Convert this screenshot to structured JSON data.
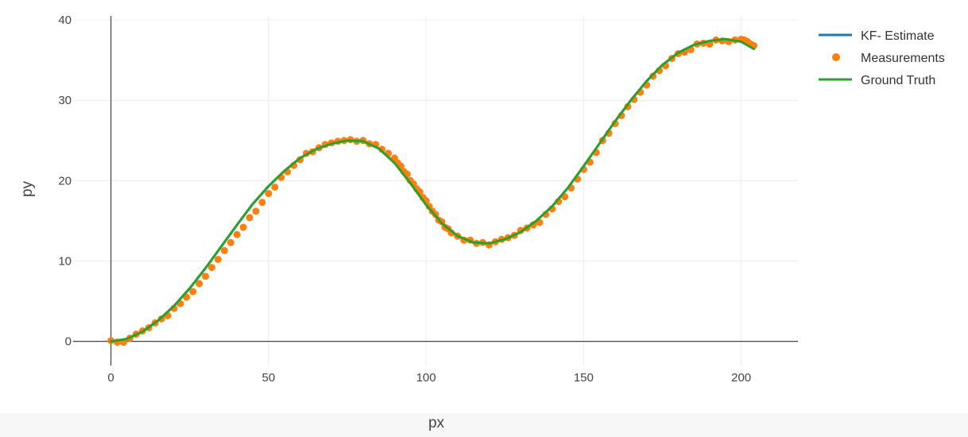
{
  "colors": {
    "kf_estimate": "#1f77b4",
    "measurements": "#ff7f0e",
    "ground_truth": "#2ca02c",
    "grid": "#ececec",
    "zeroline": "#444444",
    "text": "#444444"
  },
  "chart_data": {
    "type": "line",
    "title": "",
    "xlabel": "px",
    "ylabel": "py",
    "xlim": [
      -12,
      218
    ],
    "ylim": [
      -3,
      40.5
    ],
    "grid": true,
    "legend_position": "top-right",
    "x_ticks": [
      0,
      50,
      100,
      150,
      200
    ],
    "y_ticks": [
      0,
      10,
      20,
      30,
      40
    ],
    "series": [
      {
        "name": "KF- Estimate",
        "mode": "lines",
        "x": [
          0,
          5,
          10,
          15,
          20,
          25,
          30,
          35,
          40,
          45,
          50,
          55,
          60,
          65,
          70,
          75,
          80,
          85,
          90,
          95,
          100,
          105,
          110,
          115,
          120,
          125,
          130,
          135,
          140,
          145,
          150,
          155,
          160,
          165,
          170,
          175,
          180,
          185,
          190,
          195,
          200,
          204
        ],
        "y": [
          0,
          0.3,
          1.2,
          2.6,
          4.4,
          6.6,
          9.1,
          11.8,
          14.5,
          17.1,
          19.3,
          21.2,
          22.8,
          23.9,
          24.6,
          25.0,
          24.9,
          24.0,
          22.2,
          19.7,
          17.0,
          14.7,
          13.1,
          12.3,
          12.2,
          12.7,
          13.6,
          15.0,
          16.8,
          19.1,
          21.8,
          24.6,
          27.4,
          30.0,
          32.4,
          34.4,
          35.9,
          36.9,
          37.4,
          37.6,
          37.3,
          36.4
        ]
      },
      {
        "name": "Measurements",
        "mode": "markers",
        "x": [
          0,
          2,
          4,
          6,
          8,
          10,
          12,
          14,
          16,
          18,
          20,
          22,
          24,
          26,
          28,
          30,
          32,
          34,
          36,
          38,
          40,
          42,
          44,
          46,
          48,
          50,
          52,
          54,
          56,
          58,
          60,
          62,
          64,
          66,
          68,
          70,
          72,
          74,
          76,
          78,
          80,
          82,
          84,
          86,
          88,
          90,
          91,
          92,
          93,
          94,
          95,
          96,
          97,
          98,
          99,
          100,
          101,
          102,
          103,
          104,
          105,
          106,
          107,
          108,
          110,
          112,
          114,
          116,
          118,
          120,
          122,
          124,
          126,
          128,
          130,
          132,
          134,
          136,
          138,
          140,
          142,
          144,
          146,
          148,
          150,
          152,
          154,
          156,
          158,
          160,
          162,
          164,
          166,
          168,
          170,
          172,
          174,
          176,
          178,
          180,
          182,
          184,
          186,
          188,
          190,
          192,
          194,
          196,
          198,
          200,
          201,
          202,
          203,
          204
        ],
        "y": [
          0.1,
          -0.1,
          -0.1,
          0.4,
          0.9,
          1.3,
          1.7,
          2.3,
          2.8,
          3.2,
          4.1,
          4.7,
          5.5,
          6.2,
          7.2,
          8.1,
          9.2,
          10.2,
          11.3,
          12.3,
          13.3,
          14.2,
          15.4,
          16.2,
          17.3,
          18.4,
          19.2,
          20.4,
          21.1,
          21.9,
          22.6,
          23.4,
          23.6,
          24.1,
          24.5,
          24.7,
          24.9,
          25.0,
          25.1,
          24.9,
          25.0,
          24.6,
          24.5,
          23.9,
          23.4,
          22.8,
          22.2,
          21.8,
          21.1,
          20.8,
          20.0,
          19.6,
          19.0,
          18.6,
          17.9,
          17.5,
          16.8,
          16.2,
          15.8,
          15.1,
          14.9,
          14.2,
          14.0,
          13.5,
          13.1,
          12.6,
          12.6,
          12.2,
          12.3,
          12.0,
          12.4,
          12.7,
          12.9,
          13.2,
          13.8,
          14.1,
          14.5,
          14.8,
          15.8,
          16.5,
          17.4,
          18.0,
          19.1,
          20.2,
          21.4,
          22.3,
          23.5,
          25.0,
          25.9,
          27.1,
          28.1,
          29.2,
          30.1,
          31.0,
          31.9,
          33.0,
          33.7,
          34.3,
          35.2,
          35.8,
          36.0,
          36.3,
          37.0,
          37.1,
          37.0,
          37.5,
          37.4,
          37.3,
          37.5,
          37.6,
          37.5,
          37.3,
          37.0,
          36.8
        ]
      },
      {
        "name": "Ground Truth",
        "mode": "lines",
        "x": [
          0,
          5,
          10,
          15,
          20,
          25,
          30,
          35,
          40,
          45,
          50,
          55,
          60,
          65,
          70,
          75,
          80,
          85,
          90,
          95,
          100,
          105,
          110,
          115,
          120,
          125,
          130,
          135,
          140,
          145,
          150,
          155,
          160,
          165,
          170,
          175,
          180,
          185,
          190,
          195,
          200,
          204
        ],
        "y": [
          0,
          0.3,
          1.2,
          2.6,
          4.4,
          6.6,
          9.1,
          11.8,
          14.5,
          17.1,
          19.3,
          21.2,
          22.8,
          23.9,
          24.6,
          25.0,
          24.9,
          24.0,
          22.2,
          19.7,
          17.0,
          14.7,
          13.1,
          12.3,
          12.2,
          12.7,
          13.6,
          15.0,
          16.8,
          19.1,
          21.8,
          24.6,
          27.4,
          30.0,
          32.4,
          34.4,
          35.9,
          36.9,
          37.4,
          37.6,
          37.3,
          36.4
        ]
      }
    ]
  }
}
